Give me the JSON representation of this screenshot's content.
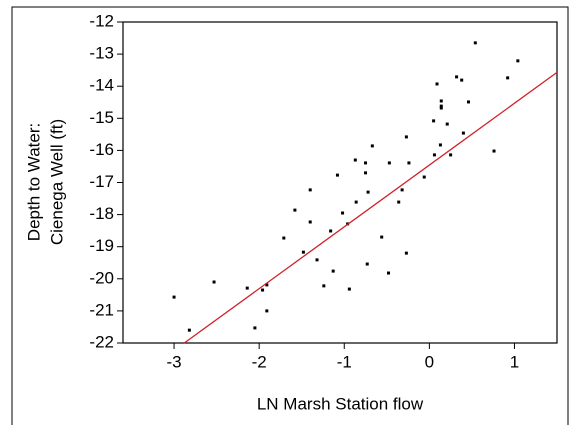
{
  "chart_data": {
    "type": "scatter",
    "x_label": "LN Marsh Station flow",
    "y_label": [
      "Depth to Water:",
      "Cienega Well (ft)"
    ],
    "xlim": [
      -3.6,
      1.5
    ],
    "ylim": [
      -22,
      -12
    ],
    "xticks": [
      -3,
      -2,
      -1,
      0,
      1
    ],
    "yticks": [
      -12,
      -13,
      -14,
      -15,
      -16,
      -17,
      -18,
      -19,
      -20,
      -21,
      -22
    ],
    "color": "#000000",
    "fit": {
      "color": "#d0202a",
      "x": [
        -2.88,
        1.5
      ],
      "y": [
        -22,
        -13.57
      ]
    },
    "x": [
      -3.0,
      -2.82,
      -2.53,
      -2.14,
      -2.05,
      -1.96,
      -1.91,
      -1.91,
      -1.71,
      -1.58,
      -1.48,
      -1.4,
      -1.4,
      -1.32,
      -1.24,
      -1.16,
      -1.13,
      -1.08,
      -1.02,
      -0.96,
      -0.94,
      -0.87,
      -0.86,
      -0.75,
      -0.75,
      -0.72,
      -0.73,
      -0.67,
      -0.56,
      -0.48,
      -0.47,
      -0.36,
      -0.32,
      -0.27,
      -0.27,
      -0.24,
      -0.06,
      0.05,
      0.06,
      0.09,
      0.13,
      0.14,
      0.14,
      0.14,
      0.21,
      0.25,
      0.32,
      0.38,
      0.4,
      0.46,
      0.54,
      0.76,
      0.92,
      1.04
    ],
    "values": [
      -20.57,
      -21.6,
      -20.1,
      -20.29,
      -21.53,
      -20.35,
      -20.19,
      -21.0,
      -18.73,
      -17.86,
      -19.17,
      -18.23,
      -17.23,
      -19.41,
      -20.22,
      -18.51,
      -19.76,
      -16.77,
      -17.95,
      -18.29,
      -20.32,
      -16.3,
      -17.61,
      -16.7,
      -16.39,
      -17.3,
      -19.54,
      -15.86,
      -18.7,
      -19.82,
      -16.39,
      -17.61,
      -17.23,
      -19.2,
      -15.58,
      -16.39,
      -16.83,
      -15.08,
      -16.14,
      -13.93,
      -15.83,
      -14.46,
      -14.62,
      -14.68,
      -15.18,
      -16.14,
      -13.71,
      -13.81,
      -15.46,
      -14.49,
      -12.65,
      -16.02,
      -13.74,
      -13.21
    ]
  }
}
